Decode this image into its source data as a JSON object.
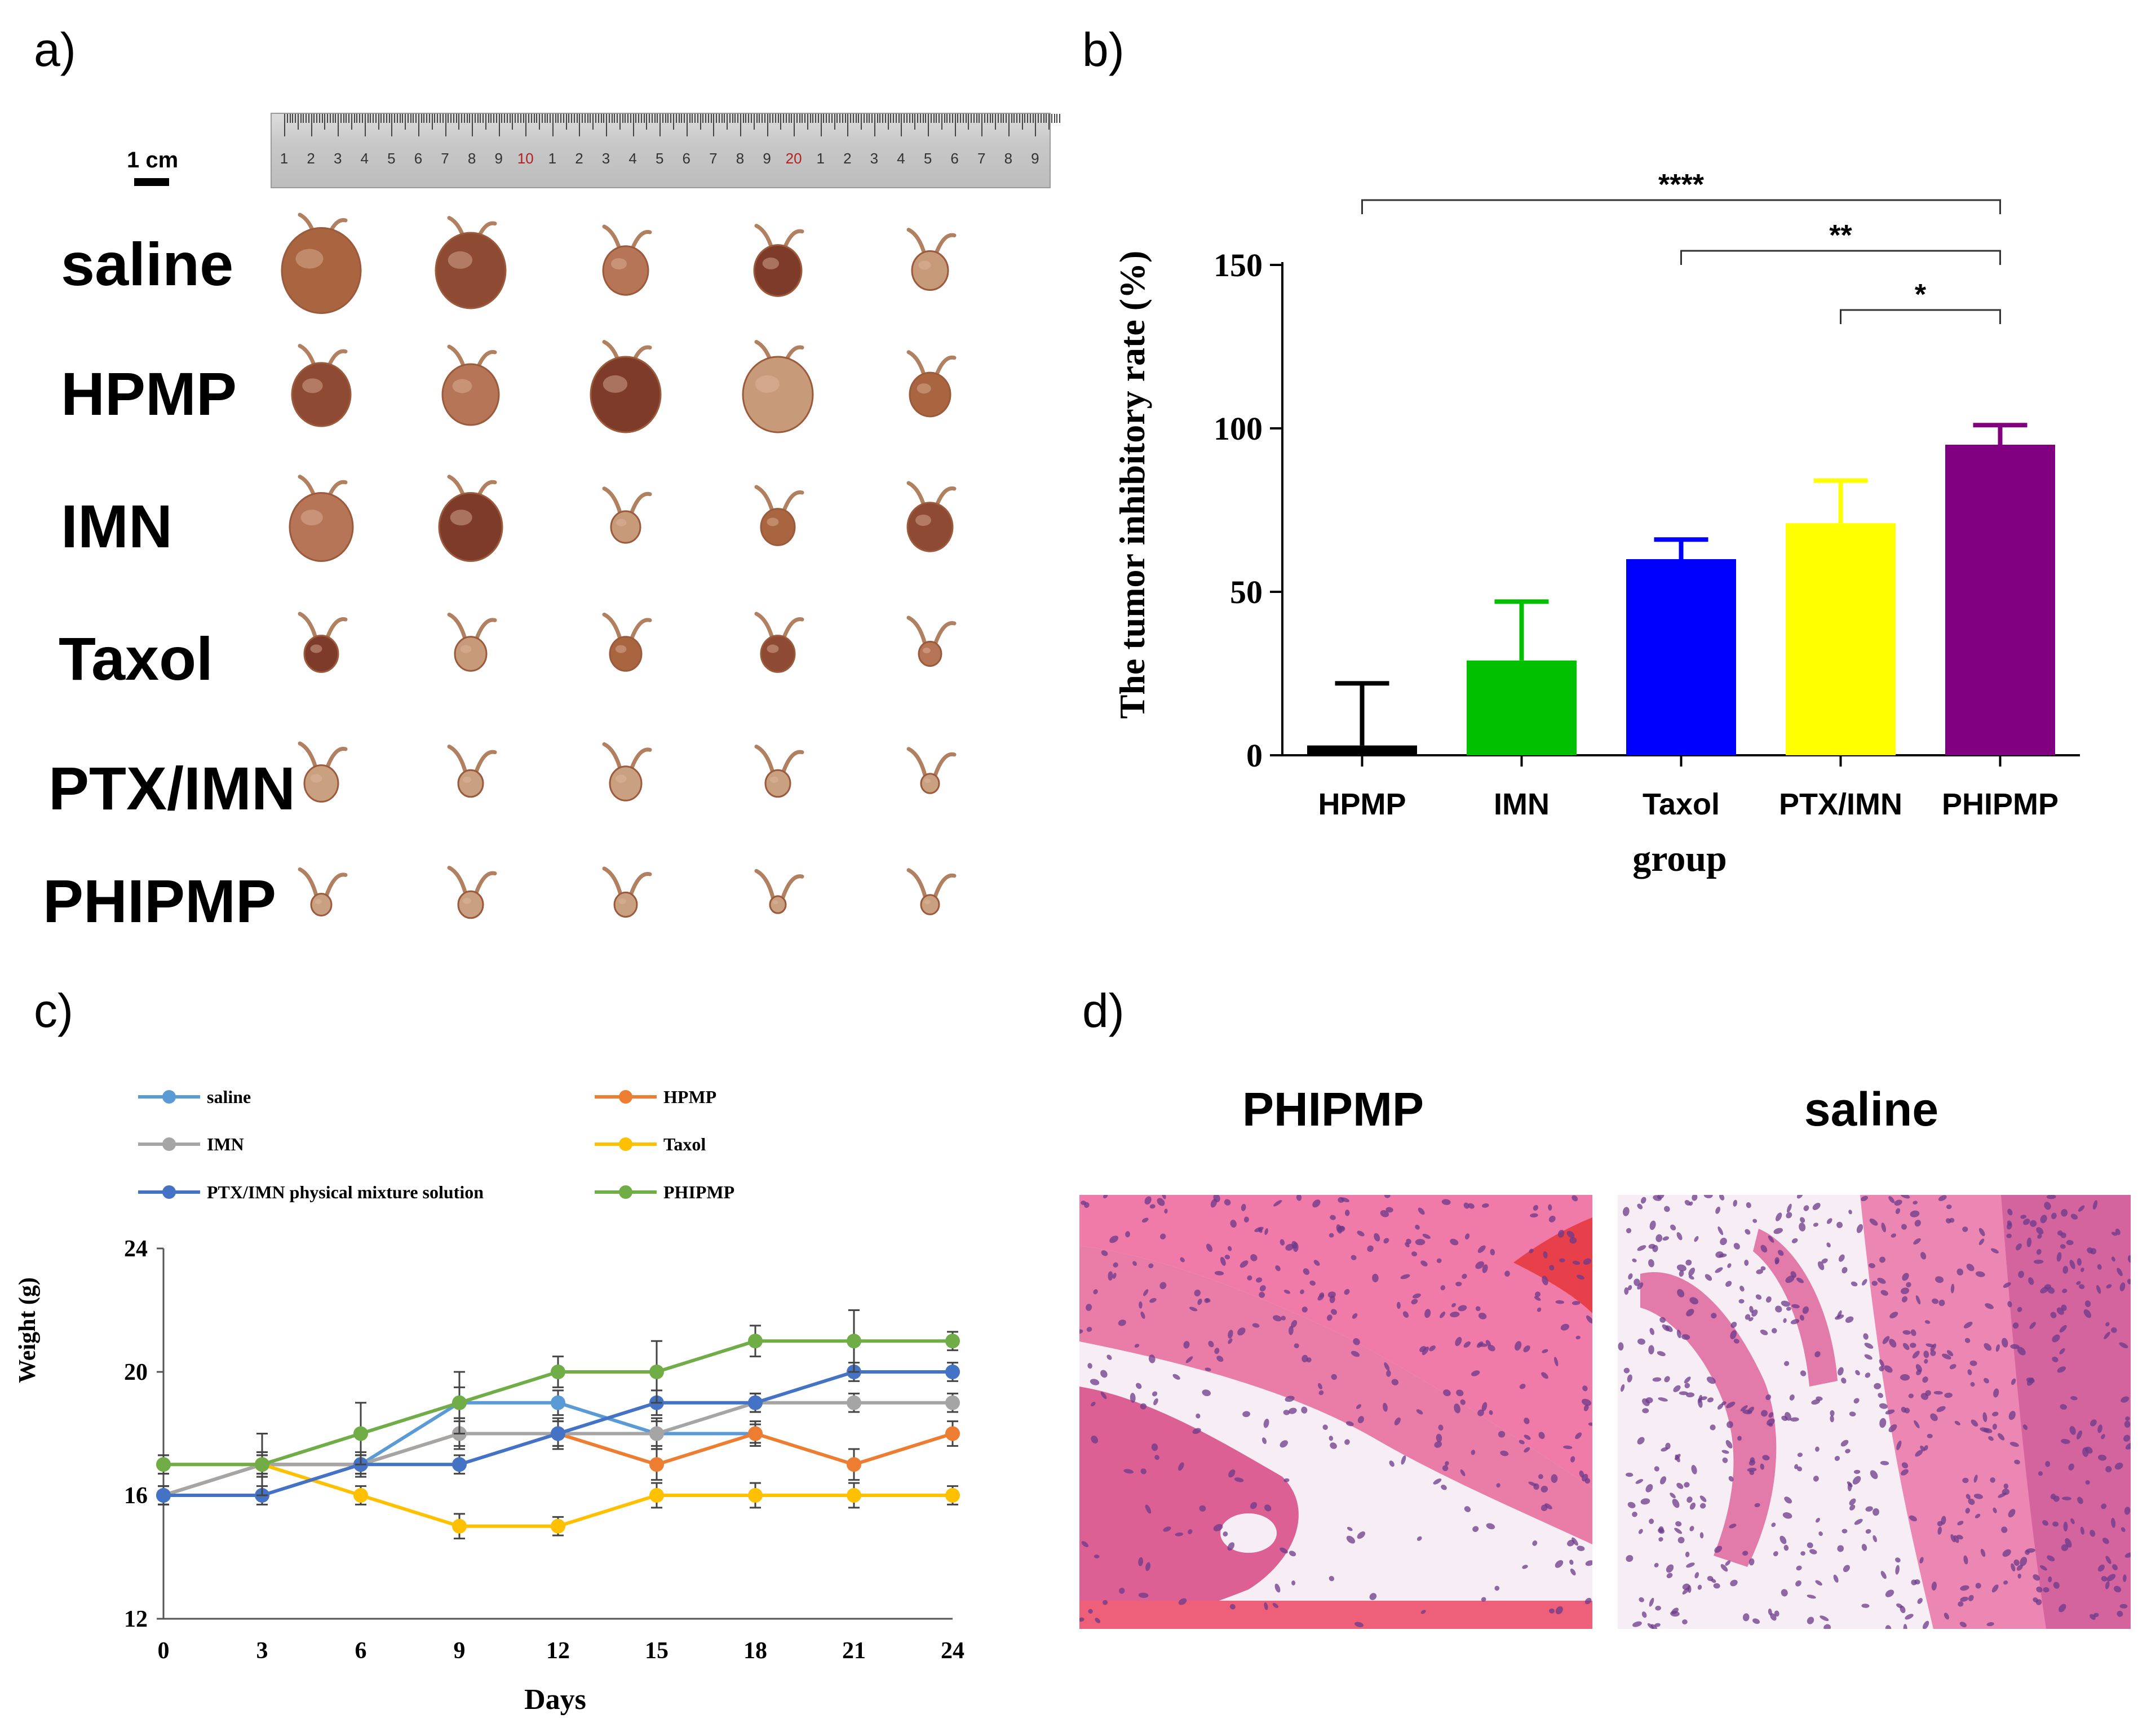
{
  "panels": {
    "a": "a)",
    "b": "b)",
    "c": "c)",
    "d": "d)"
  },
  "panel_a": {
    "scale_label": "1 cm",
    "ruler_numbers": [
      "1",
      "2",
      "3",
      "4",
      "5",
      "6",
      "7",
      "8",
      "9",
      "10",
      "1",
      "2",
      "3",
      "4",
      "5",
      "6",
      "7",
      "8",
      "9",
      "20",
      "1",
      "2",
      "3",
      "4",
      "5",
      "6",
      "7",
      "8",
      "9"
    ],
    "groups": [
      "saline",
      "HPMP",
      "IMN",
      "Taxol",
      "PTX/IMN",
      "PHIPMP"
    ],
    "tumor_color": "#9c5a3c"
  },
  "chart_data": [
    {
      "type": "bar",
      "title": "",
      "xlabel": "group",
      "ylabel": "The tumor inhibitory rate (%)",
      "categories": [
        "HPMP",
        "IMN",
        "Taxol",
        "PTX/IMN",
        "PHIPMP"
      ],
      "values": [
        3,
        29,
        60,
        71,
        95
      ],
      "errors": [
        19,
        18,
        6,
        13,
        6
      ],
      "colors": [
        "#000000",
        "#00c000",
        "#0000ff",
        "#ffff00",
        "#800080"
      ],
      "ylim": [
        0,
        150
      ],
      "yticks": [
        0,
        50,
        100,
        150
      ],
      "significance": [
        {
          "from": "HPMP",
          "to": "PHIPMP",
          "label": "****"
        },
        {
          "from": "Taxol",
          "to": "PHIPMP",
          "label": "**"
        },
        {
          "from": "PTX/IMN",
          "to": "PHIPMP",
          "label": "*"
        }
      ]
    },
    {
      "type": "line",
      "title": "",
      "xlabel": "Days",
      "ylabel": "Weight (g)",
      "x": [
        0,
        3,
        6,
        9,
        12,
        15,
        18,
        21,
        24
      ],
      "xlim": [
        0,
        24
      ],
      "ylim": [
        12,
        24
      ],
      "yticks": [
        12,
        16,
        20,
        24
      ],
      "series": [
        {
          "name": "saline",
          "color": "#5b9bd5",
          "x": [
            0,
            3,
            6,
            9,
            12,
            15,
            18
          ],
          "values": [
            16,
            17,
            17,
            19,
            19,
            18,
            18
          ],
          "errors": [
            0.3,
            0.4,
            0.4,
            0.5,
            0.4,
            0.4,
            0.3
          ]
        },
        {
          "name": "HPMP",
          "color": "#ed7d31",
          "x": [
            0,
            3,
            6,
            9,
            12,
            15,
            18,
            21,
            24
          ],
          "values": [
            16,
            17,
            17,
            18,
            18,
            17,
            18,
            17,
            18
          ],
          "errors": [
            0.3,
            0.3,
            0.3,
            0.4,
            0.4,
            0.5,
            0.4,
            0.5,
            0.4
          ]
        },
        {
          "name": "IMN",
          "color": "#a5a5a5",
          "x": [
            0,
            3,
            6,
            9,
            12,
            15,
            18,
            21,
            24
          ],
          "values": [
            16,
            17,
            17,
            18,
            18,
            18,
            19,
            19,
            19
          ],
          "errors": [
            0.3,
            0.3,
            0.3,
            0.5,
            0.5,
            0.5,
            0.3,
            0.3,
            0.3
          ]
        },
        {
          "name": "Taxol",
          "color": "#ffc000",
          "x": [
            0,
            3,
            6,
            9,
            12,
            15,
            18,
            21,
            24
          ],
          "values": [
            17,
            17,
            16,
            15,
            15,
            16,
            16,
            16,
            16
          ],
          "errors": [
            0.3,
            0.4,
            0.3,
            0.4,
            0.3,
            0.4,
            0.4,
            0.4,
            0.3
          ]
        },
        {
          "name": "PTX/IMN physical mixture solution",
          "color": "#4472c4",
          "x": [
            0,
            3,
            6,
            9,
            12,
            15,
            18,
            21,
            24
          ],
          "values": [
            16,
            16,
            17,
            17,
            18,
            19,
            19,
            20,
            20
          ],
          "errors": [
            0.3,
            0.3,
            0.3,
            0.3,
            0.4,
            0.4,
            0.3,
            0.3,
            0.3
          ]
        },
        {
          "name": "PHIPMP",
          "color": "#70ad47",
          "x": [
            0,
            3,
            6,
            9,
            12,
            15,
            18,
            21,
            24
          ],
          "values": [
            17,
            17,
            18,
            19,
            20,
            20,
            21,
            21,
            21
          ],
          "errors": [
            0.3,
            1.0,
            1.0,
            1.0,
            0.5,
            1.0,
            0.5,
            1.0,
            0.3
          ]
        }
      ]
    }
  ],
  "panel_d": {
    "labels": [
      "PHIPMP",
      "saline"
    ],
    "colors": {
      "pink": "#e8689a",
      "purple": "#6b3a8a",
      "white": "#f6eef4",
      "red": "#e8404a"
    }
  }
}
